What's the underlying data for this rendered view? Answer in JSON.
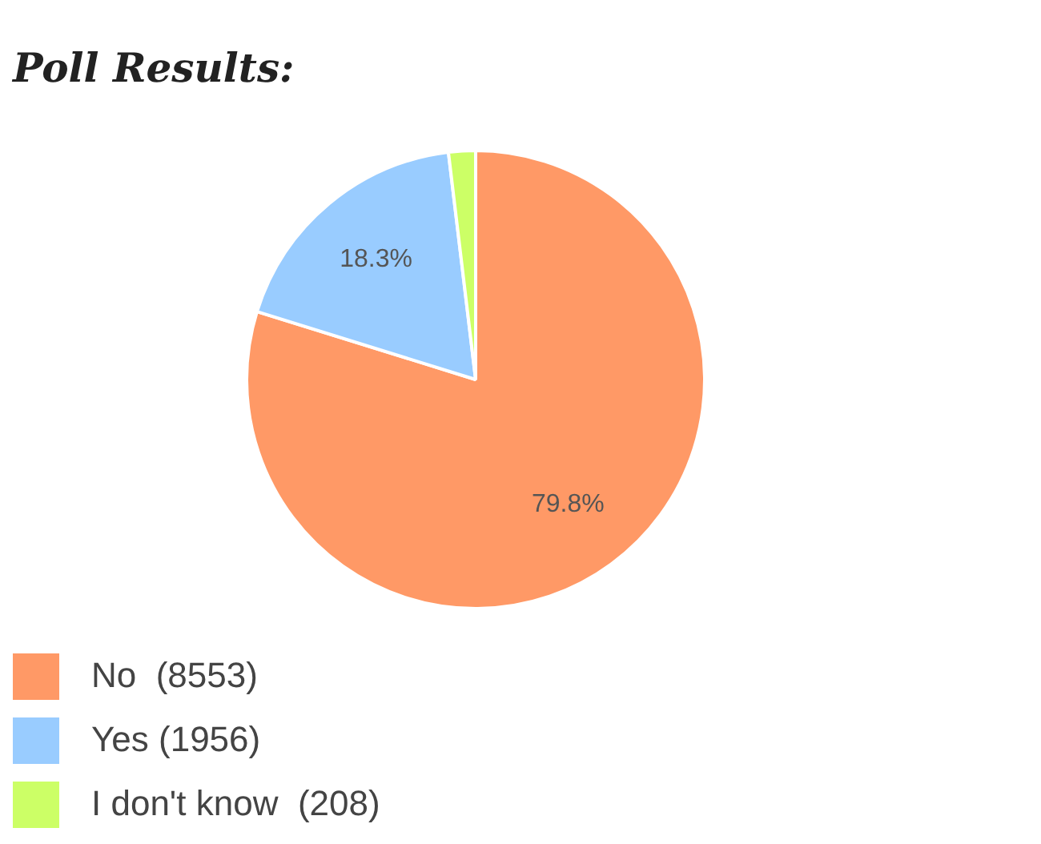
{
  "chart_data": {
    "type": "pie",
    "title": "Poll Results:",
    "categories": [
      "No  (8553)",
      "Yes (1956)",
      "I don't know  (208)"
    ],
    "values": [
      79.8,
      18.3,
      1.9
    ],
    "colors": [
      "#ff9966",
      "#99ccff",
      "#ccff66"
    ],
    "value_labels": [
      "79.8%",
      "18.3%",
      null
    ],
    "legend": "bottom left"
  }
}
